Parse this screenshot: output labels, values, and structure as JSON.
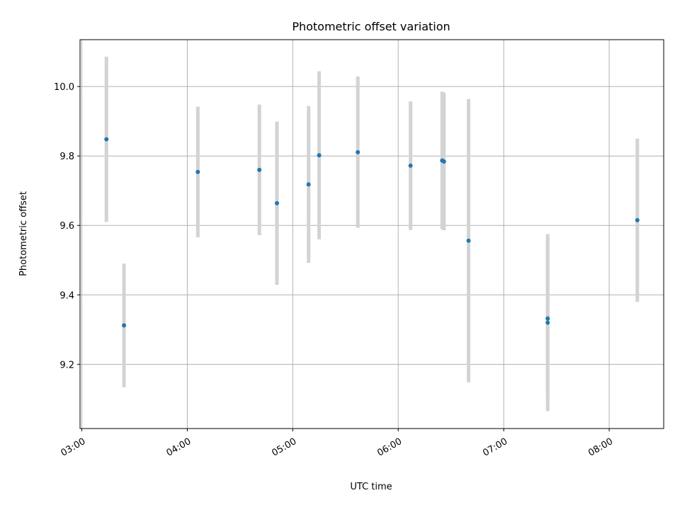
{
  "chart_data": {
    "type": "scatter",
    "title": "Photometric offset variation",
    "xlabel": "UTC time",
    "ylabel": "Photometric offset",
    "x_unit": "UTC hours",
    "xlim": [
      "02:59",
      "08:31"
    ],
    "ylim": [
      9.015,
      10.135
    ],
    "x_ticks": [
      "03:00",
      "04:00",
      "05:00",
      "06:00",
      "07:00",
      "08:00"
    ],
    "y_ticks": [
      "9.2",
      "9.4",
      "9.6",
      "9.8",
      "10.0"
    ],
    "grid": true,
    "point_color": "#1f77b4",
    "errorbar_color": "#d3d3d3",
    "points": [
      {
        "x": "03:14",
        "y": 9.848,
        "err": 0.238
      },
      {
        "x": "03:24",
        "y": 9.312,
        "err": 0.178
      },
      {
        "x": "04:06",
        "y": 9.754,
        "err": 0.188
      },
      {
        "x": "04:41",
        "y": 9.76,
        "err": 0.188
      },
      {
        "x": "04:51",
        "y": 9.664,
        "err": 0.235
      },
      {
        "x": "05:09",
        "y": 9.718,
        "err": 0.226
      },
      {
        "x": "05:15",
        "y": 9.802,
        "err": 0.242
      },
      {
        "x": "05:37",
        "y": 9.811,
        "err": 0.218
      },
      {
        "x": "06:07",
        "y": 9.772,
        "err": 0.185
      },
      {
        "x": "06:25",
        "y": 9.787,
        "err": 0.198
      },
      {
        "x": "06:26",
        "y": 9.784,
        "err": 0.198
      },
      {
        "x": "06:40",
        "y": 9.556,
        "err": 0.408
      },
      {
        "x": "07:25",
        "y": 9.32,
        "err": 0.255
      },
      {
        "x": "07:25",
        "y": 9.332,
        "err": 0.23
      },
      {
        "x": "08:16",
        "y": 9.615,
        "err": 0.235
      }
    ]
  }
}
